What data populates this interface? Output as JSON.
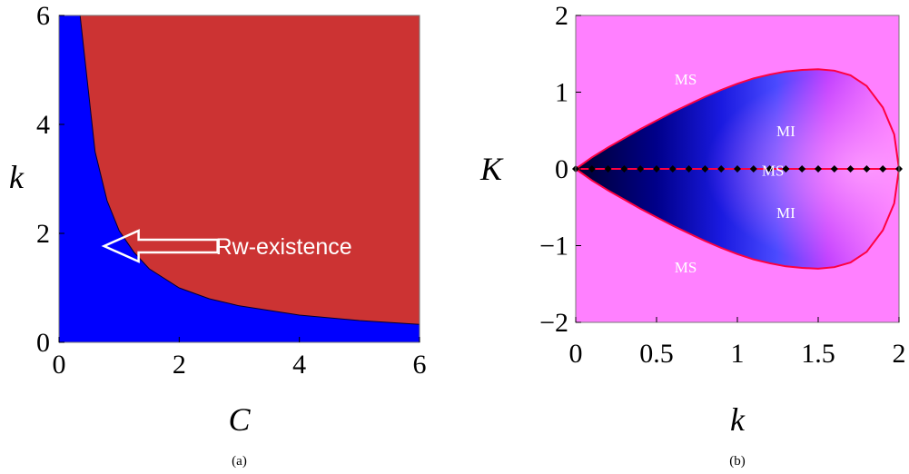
{
  "chart_data": [
    {
      "type": "area",
      "panel_label": "(a)",
      "xlabel": "C",
      "ylabel": "k",
      "xlim": [
        0,
        6
      ],
      "ylim": [
        0,
        6
      ],
      "xticks": [
        0,
        2,
        4,
        6
      ],
      "yticks": [
        0,
        2,
        4,
        6
      ],
      "boundary": {
        "x": [
          0.35,
          0.6,
          0.8,
          1.0,
          1.25,
          1.5,
          2.0,
          2.5,
          3.0,
          4.0,
          5.0,
          6.0
        ],
        "y": [
          6.0,
          3.5,
          2.6,
          2.05,
          1.65,
          1.35,
          1.0,
          0.8,
          0.67,
          0.5,
          0.4,
          0.33
        ]
      },
      "colors": {
        "below": "#0000ff",
        "above": "#cc3333"
      },
      "annotation": {
        "text": "Rw-existence",
        "x": 0.75,
        "y": 1.9
      }
    },
    {
      "type": "heatmap",
      "panel_label": "(b)",
      "xlabel": "k",
      "ylabel": "K",
      "xlim": [
        0,
        2
      ],
      "ylim": [
        -2,
        2
      ],
      "xticks": [
        "0",
        "0.5",
        "1",
        "1.5",
        "2"
      ],
      "xtick_values": [
        0,
        0.5,
        1,
        1.5,
        2
      ],
      "yticks": [
        "−2",
        "−1",
        "0",
        "1",
        "2"
      ],
      "ytick_values": [
        -2,
        -1,
        0,
        1,
        2
      ],
      "boundary": {
        "x": [
          0,
          0.1,
          0.2,
          0.3,
          0.4,
          0.5,
          0.6,
          0.7,
          0.8,
          0.9,
          1.0,
          1.1,
          1.2,
          1.3,
          1.4,
          1.5,
          1.6,
          1.7,
          1.8,
          1.9,
          1.97,
          2.0
        ],
        "y": [
          0,
          0.15,
          0.28,
          0.4,
          0.52,
          0.63,
          0.74,
          0.84,
          0.94,
          1.03,
          1.11,
          1.18,
          1.23,
          1.27,
          1.29,
          1.3,
          1.28,
          1.22,
          1.08,
          0.8,
          0.45,
          0
        ]
      },
      "markers": {
        "x": [
          0,
          0.1,
          0.2,
          0.3,
          0.4,
          0.5,
          0.6,
          0.7,
          0.8,
          0.9,
          1.0,
          1.1,
          1.2,
          1.3,
          1.4,
          1.5,
          1.6,
          1.7,
          1.8,
          1.9,
          2.0
        ],
        "y": 0
      },
      "regions": [
        {
          "text": "MS",
          "x": 0.68,
          "y": 1.17
        },
        {
          "text": "MI",
          "x": 1.3,
          "y": 0.5
        },
        {
          "text": "MS",
          "x": 1.22,
          "y": -0.02
        },
        {
          "text": "MI",
          "x": 1.3,
          "y": -0.57
        },
        {
          "text": "MS",
          "x": 0.68,
          "y": -1.28
        }
      ],
      "colors": {
        "background": "#ff80ff",
        "boundary": "#ff0040",
        "markers": "#000000"
      }
    }
  ]
}
